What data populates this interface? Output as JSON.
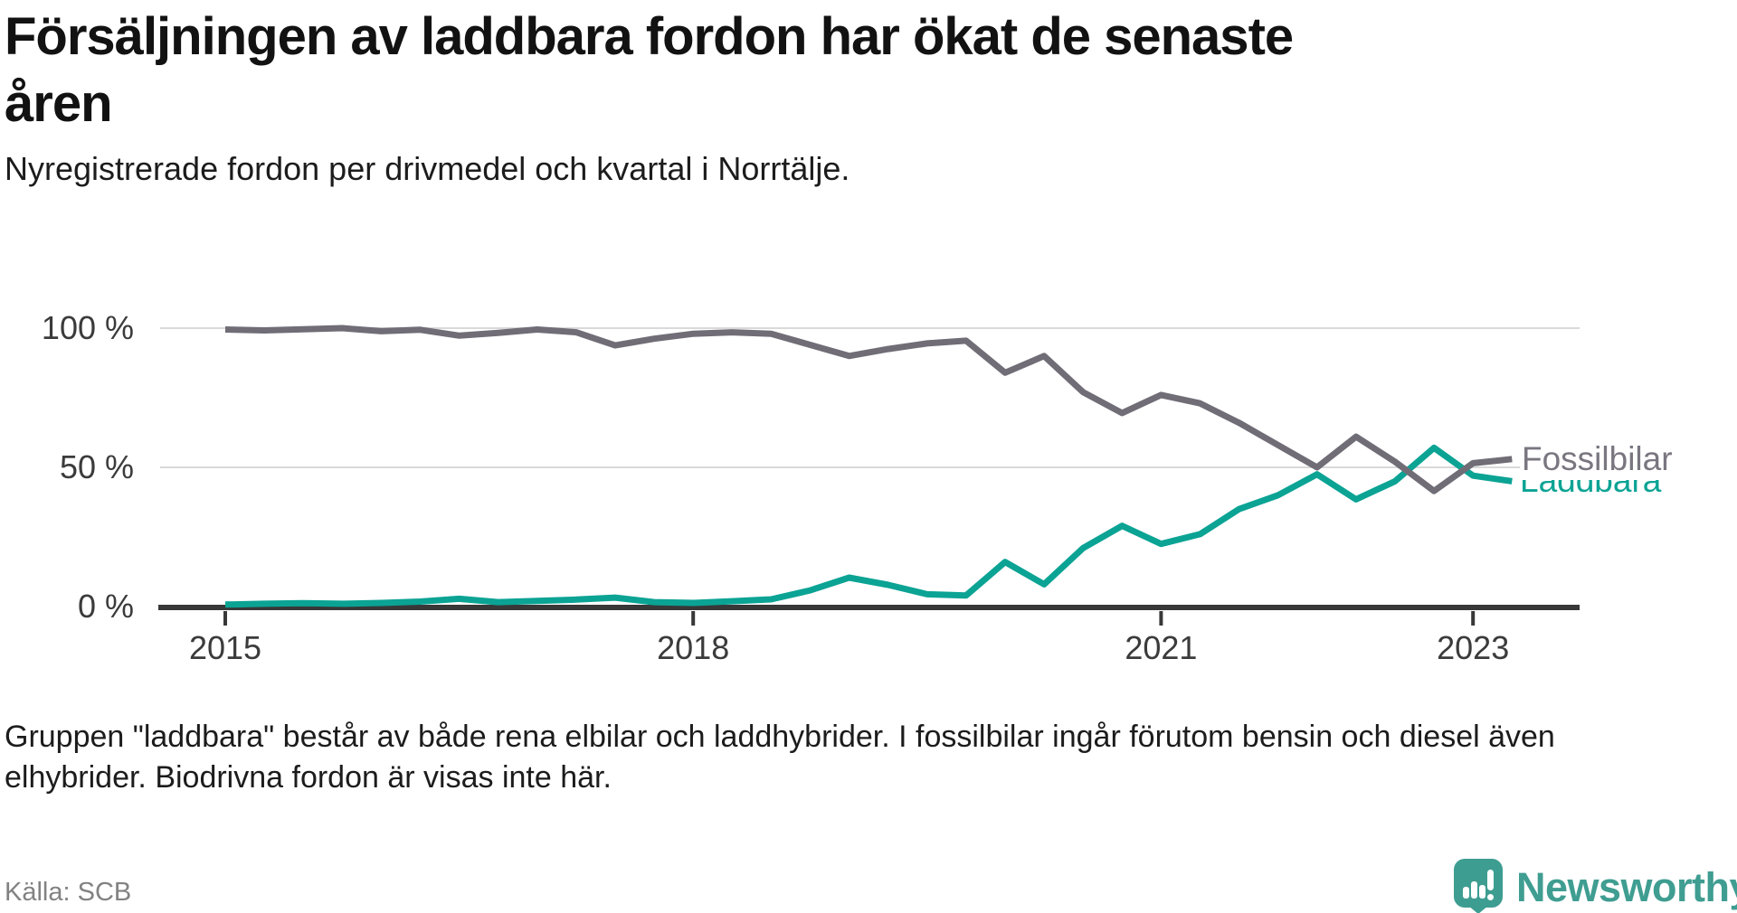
{
  "header": {
    "title_line1": "Försäljningen av laddbara fordon har ökat de senaste",
    "title_line2": "åren",
    "subtitle": "Nyregistrerade fordon per drivmedel och kvartal i Norrtälje."
  },
  "chart_data": {
    "type": "line",
    "title": "Försäljningen av laddbara fordon har ökat de senaste åren",
    "subtitle": "Nyregistrerade fordon per drivmedel och kvartal i Norrtälje.",
    "x_start": 2015,
    "x_step": 0.25,
    "categories": [
      "2015 Q1",
      "2015 Q2",
      "2015 Q3",
      "2015 Q4",
      "2016 Q1",
      "2016 Q2",
      "2016 Q3",
      "2016 Q4",
      "2017 Q1",
      "2017 Q2",
      "2017 Q3",
      "2017 Q4",
      "2018 Q1",
      "2018 Q2",
      "2018 Q3",
      "2018 Q4",
      "2019 Q1",
      "2019 Q2",
      "2019 Q3",
      "2019 Q4",
      "2020 Q1",
      "2020 Q2",
      "2020 Q3",
      "2020 Q4",
      "2021 Q1",
      "2021 Q2",
      "2021 Q3",
      "2021 Q4",
      "2022 Q1",
      "2022 Q2",
      "2022 Q3",
      "2022 Q4",
      "2023 Q1",
      "2023 Q2"
    ],
    "series": [
      {
        "name": "Fossilbilar",
        "color": "#706d77",
        "label_color": "#7a7680",
        "values": [
          99.5,
          99.2,
          99.6,
          100,
          98.9,
          99.4,
          97.3,
          98.3,
          99.5,
          98.5,
          93.8,
          96.2,
          98,
          98.5,
          98,
          94,
          90,
          92.5,
          94.5,
          95.5,
          84,
          90,
          77,
          69.5,
          76,
          73,
          66,
          58,
          50,
          61,
          52,
          41.5,
          51.5,
          53
        ]
      },
      {
        "name": "Laddbara",
        "color": "#0ba394",
        "label_color": "#0ba394",
        "values": [
          0.7,
          1,
          1.2,
          1,
          1.3,
          1.8,
          2.8,
          1.6,
          2,
          2.5,
          3.2,
          1.6,
          1.3,
          1.9,
          2.6,
          5.8,
          10.4,
          7.8,
          4.4,
          4,
          16,
          8,
          21,
          29,
          22.5,
          26,
          35,
          40,
          47.5,
          38.5,
          45,
          57,
          47,
          45
        ]
      }
    ],
    "x_ticks": [
      {
        "label": "2015",
        "t": 2015
      },
      {
        "label": "2018",
        "t": 2018
      },
      {
        "label": "2021",
        "t": 2021
      },
      {
        "label": "2023",
        "t": 2023
      }
    ],
    "y_ticks": [
      {
        "label": "100 %",
        "v": 100
      },
      {
        "label": "50 %",
        "v": 50
      },
      {
        "label": "0 %",
        "v": 0
      }
    ],
    "ylim": [
      0,
      100
    ],
    "grid": "horizontal",
    "legend_position": "line-end-labels-right",
    "unit": "%"
  },
  "footer": {
    "note_line1": "Gruppen \"laddbara\" består av både rena elbilar och laddhybrider. I fossilbilar ingår förutom bensin och diesel även",
    "note_line2": "elhybrider. Biodrivna fordon är visas inte här.",
    "source": "Källa: SCB"
  },
  "branding": {
    "name": "Newsworthy",
    "color": "#3f9d91",
    "icon": "newsworthy-pin-barchart-icon"
  }
}
